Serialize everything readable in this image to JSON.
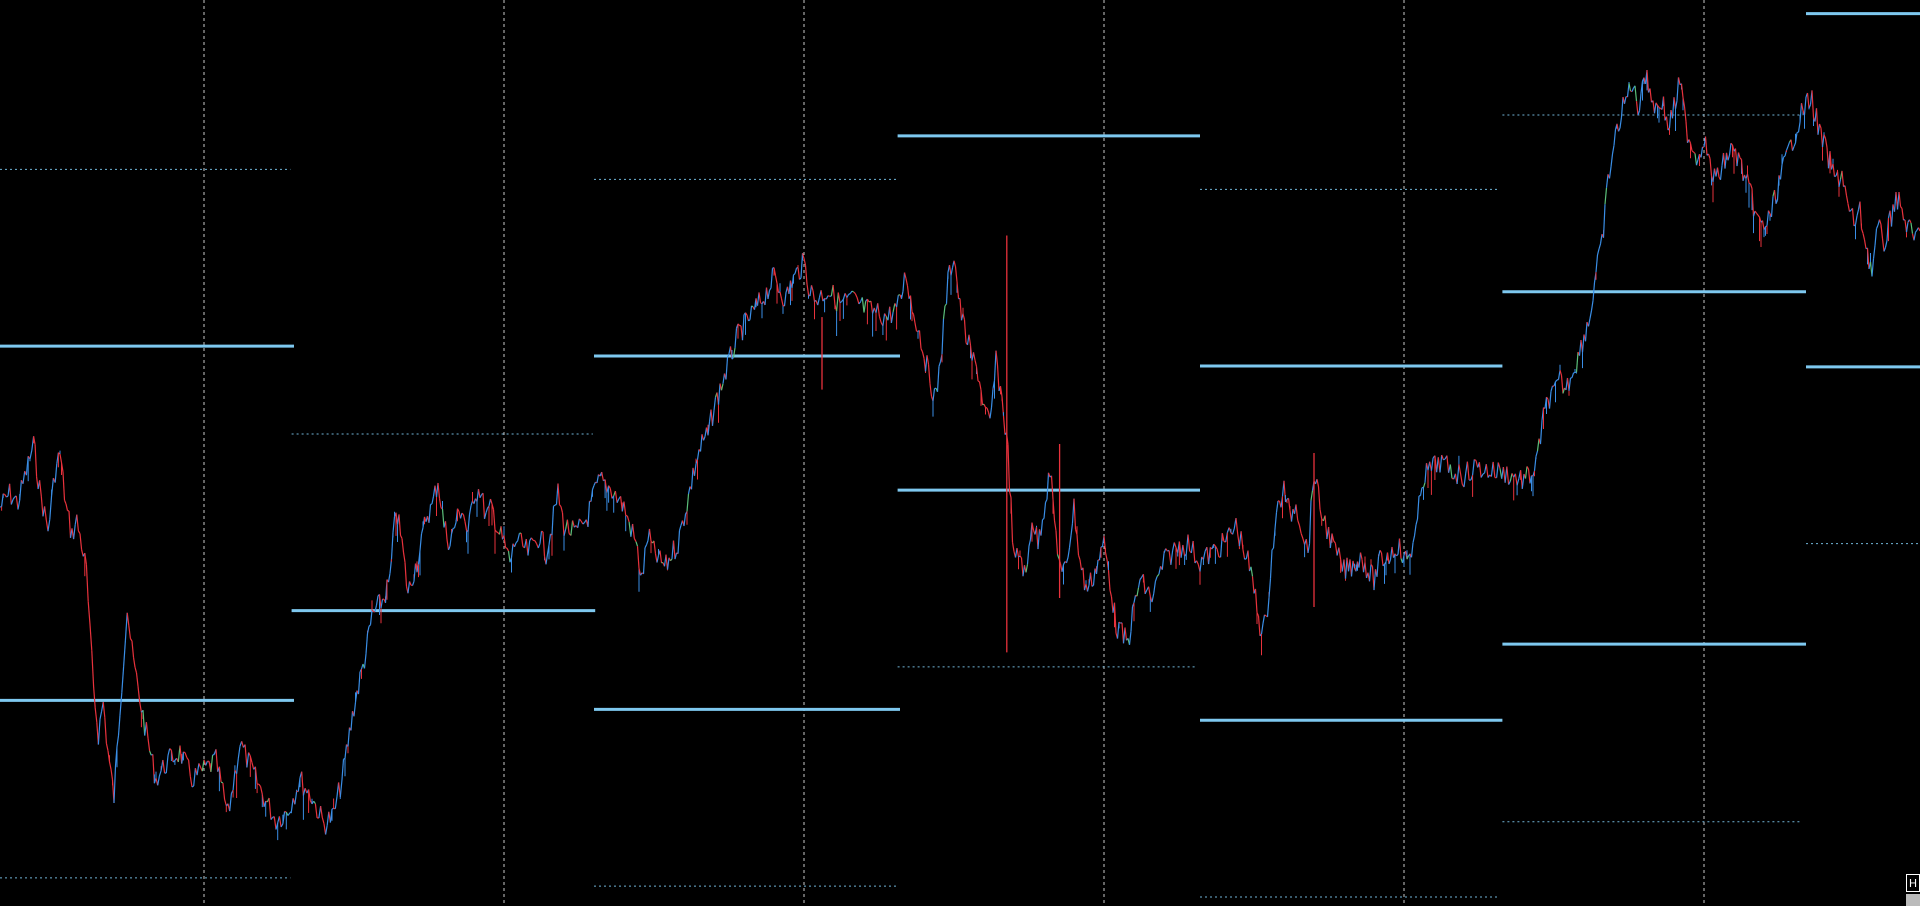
{
  "colors": {
    "background": "#000000",
    "vgrid": "#c8c8c8",
    "level": "#7ec8ef",
    "level_dashed": "#7ec8ef",
    "bull": "#3a8ee6",
    "bear": "#e8323c",
    "neutral": "#5bbf7a"
  },
  "corner_label": "H",
  "chart_data": {
    "type": "line",
    "title": "",
    "xlabel": "",
    "ylabel": "",
    "ylim": [
      0,
      1000
    ],
    "xlim": [
      0,
      1600
    ],
    "grid": "vertical-dashed",
    "vertical_gridlines_x": [
      170,
      420,
      670,
      920,
      1170,
      1420
    ],
    "price_path": [
      [
        0,
        560
      ],
      [
        8,
        545
      ],
      [
        15,
        555
      ],
      [
        22,
        520
      ],
      [
        28,
        490
      ],
      [
        33,
        540
      ],
      [
        40,
        585
      ],
      [
        46,
        520
      ],
      [
        50,
        500
      ],
      [
        55,
        560
      ],
      [
        60,
        590
      ],
      [
        64,
        575
      ],
      [
        68,
        600
      ],
      [
        72,
        630
      ],
      [
        75,
        700
      ],
      [
        78,
        760
      ],
      [
        82,
        810
      ],
      [
        86,
        775
      ],
      [
        90,
        830
      ],
      [
        95,
        880
      ],
      [
        100,
        780
      ],
      [
        106,
        670
      ],
      [
        110,
        720
      ],
      [
        115,
        760
      ],
      [
        122,
        810
      ],
      [
        130,
        860
      ],
      [
        140,
        840
      ],
      [
        150,
        830
      ],
      [
        160,
        860
      ],
      [
        170,
        850
      ],
      [
        180,
        840
      ],
      [
        190,
        900
      ],
      [
        200,
        820
      ],
      [
        210,
        850
      ],
      [
        220,
        880
      ],
      [
        230,
        905
      ],
      [
        240,
        895
      ],
      [
        250,
        860
      ],
      [
        260,
        880
      ],
      [
        270,
        910
      ],
      [
        278,
        900
      ],
      [
        285,
        860
      ],
      [
        290,
        820
      ],
      [
        295,
        780
      ],
      [
        300,
        750
      ],
      [
        305,
        720
      ],
      [
        310,
        680
      ],
      [
        315,
        670
      ],
      [
        320,
        660
      ],
      [
        325,
        640
      ],
      [
        330,
        560
      ],
      [
        335,
        600
      ],
      [
        340,
        655
      ],
      [
        345,
        630
      ],
      [
        350,
        610
      ],
      [
        355,
        570
      ],
      [
        360,
        560
      ],
      [
        365,
        530
      ],
      [
        370,
        580
      ],
      [
        375,
        600
      ],
      [
        380,
        575
      ],
      [
        385,
        560
      ],
      [
        390,
        590
      ],
      [
        395,
        545
      ],
      [
        400,
        540
      ],
      [
        405,
        570
      ],
      [
        410,
        560
      ],
      [
        415,
        585
      ],
      [
        420,
        600
      ],
      [
        425,
        620
      ],
      [
        430,
        595
      ],
      [
        440,
        610
      ],
      [
        450,
        590
      ],
      [
        455,
        610
      ],
      [
        460,
        580
      ],
      [
        465,
        545
      ],
      [
        470,
        580
      ],
      [
        480,
        590
      ],
      [
        490,
        570
      ],
      [
        495,
        545
      ],
      [
        500,
        530
      ],
      [
        510,
        540
      ],
      [
        520,
        560
      ],
      [
        530,
        600
      ],
      [
        535,
        640
      ],
      [
        540,
        590
      ],
      [
        545,
        610
      ],
      [
        550,
        620
      ],
      [
        555,
        625
      ],
      [
        560,
        610
      ],
      [
        565,
        600
      ],
      [
        570,
        570
      ],
      [
        575,
        540
      ],
      [
        580,
        510
      ],
      [
        585,
        490
      ],
      [
        590,
        480
      ],
      [
        595,
        450
      ],
      [
        600,
        430
      ],
      [
        605,
        410
      ],
      [
        610,
        390
      ],
      [
        615,
        370
      ],
      [
        620,
        360
      ],
      [
        625,
        350
      ],
      [
        630,
        340
      ],
      [
        635,
        330
      ],
      [
        640,
        320
      ],
      [
        645,
        305
      ],
      [
        650,
        320
      ],
      [
        655,
        330
      ],
      [
        660,
        310
      ],
      [
        665,
        300
      ],
      [
        670,
        290
      ],
      [
        675,
        320
      ],
      [
        680,
        330
      ],
      [
        690,
        320
      ],
      [
        700,
        335
      ],
      [
        710,
        330
      ],
      [
        720,
        340
      ],
      [
        730,
        345
      ],
      [
        740,
        350
      ],
      [
        750,
        335
      ],
      [
        755,
        300
      ],
      [
        760,
        340
      ],
      [
        765,
        360
      ],
      [
        770,
        390
      ],
      [
        775,
        420
      ],
      [
        780,
        440
      ],
      [
        785,
        380
      ],
      [
        790,
        310
      ],
      [
        795,
        280
      ],
      [
        800,
        340
      ],
      [
        805,
        370
      ],
      [
        810,
        395
      ],
      [
        815,
        410
      ],
      [
        820,
        450
      ],
      [
        825,
        470
      ],
      [
        830,
        400
      ],
      [
        835,
        440
      ],
      [
        840,
        500
      ],
      [
        845,
        620
      ],
      [
        850,
        610
      ],
      [
        855,
        640
      ],
      [
        860,
        570
      ],
      [
        865,
        600
      ],
      [
        870,
        560
      ],
      [
        875,
        520
      ],
      [
        880,
        590
      ],
      [
        885,
        640
      ],
      [
        890,
        610
      ],
      [
        895,
        560
      ],
      [
        900,
        620
      ],
      [
        905,
        650
      ],
      [
        910,
        640
      ],
      [
        915,
        620
      ],
      [
        920,
        600
      ],
      [
        925,
        640
      ],
      [
        930,
        690
      ],
      [
        935,
        700
      ],
      [
        940,
        710
      ],
      [
        945,
        670
      ],
      [
        950,
        640
      ],
      [
        960,
        660
      ],
      [
        970,
        620
      ],
      [
        980,
        605
      ],
      [
        990,
        600
      ],
      [
        1000,
        620
      ],
      [
        1010,
        610
      ],
      [
        1020,
        600
      ],
      [
        1030,
        580
      ],
      [
        1040,
        620
      ],
      [
        1045,
        650
      ],
      [
        1050,
        690
      ],
      [
        1055,
        690
      ],
      [
        1060,
        610
      ],
      [
        1065,
        560
      ],
      [
        1070,
        540
      ],
      [
        1075,
        570
      ],
      [
        1080,
        555
      ],
      [
        1090,
        610
      ],
      [
        1095,
        520
      ],
      [
        1100,
        560
      ],
      [
        1110,
        600
      ],
      [
        1120,
        630
      ],
      [
        1125,
        625
      ],
      [
        1130,
        620
      ],
      [
        1135,
        615
      ],
      [
        1140,
        630
      ],
      [
        1145,
        640
      ],
      [
        1150,
        620
      ],
      [
        1155,
        615
      ],
      [
        1160,
        610
      ],
      [
        1165,
        600
      ],
      [
        1170,
        620
      ],
      [
        1175,
        610
      ],
      [
        1180,
        590
      ],
      [
        1185,
        530
      ],
      [
        1190,
        520
      ],
      [
        1200,
        510
      ],
      [
        1210,
        520
      ],
      [
        1220,
        525
      ],
      [
        1230,
        515
      ],
      [
        1240,
        520
      ],
      [
        1250,
        520
      ],
      [
        1260,
        525
      ],
      [
        1270,
        530
      ],
      [
        1275,
        525
      ],
      [
        1280,
        515
      ],
      [
        1285,
        470
      ],
      [
        1290,
        440
      ],
      [
        1295,
        435
      ],
      [
        1300,
        420
      ],
      [
        1305,
        430
      ],
      [
        1310,
        410
      ],
      [
        1315,
        395
      ],
      [
        1320,
        370
      ],
      [
        1325,
        350
      ],
      [
        1330,
        300
      ],
      [
        1335,
        270
      ],
      [
        1340,
        200
      ],
      [
        1345,
        160
      ],
      [
        1350,
        130
      ],
      [
        1355,
        110
      ],
      [
        1360,
        90
      ],
      [
        1365,
        120
      ],
      [
        1370,
        80
      ],
      [
        1375,
        100
      ],
      [
        1380,
        120
      ],
      [
        1385,
        110
      ],
      [
        1390,
        140
      ],
      [
        1395,
        120
      ],
      [
        1400,
        90
      ],
      [
        1405,
        140
      ],
      [
        1410,
        160
      ],
      [
        1415,
        175
      ],
      [
        1420,
        150
      ],
      [
        1425,
        185
      ],
      [
        1430,
        200
      ],
      [
        1435,
        185
      ],
      [
        1440,
        170
      ],
      [
        1445,
        165
      ],
      [
        1450,
        180
      ],
      [
        1455,
        200
      ],
      [
        1460,
        220
      ],
      [
        1465,
        245
      ],
      [
        1470,
        250
      ],
      [
        1475,
        240
      ],
      [
        1480,
        215
      ],
      [
        1485,
        190
      ],
      [
        1490,
        170
      ],
      [
        1495,
        150
      ],
      [
        1500,
        130
      ],
      [
        1505,
        115
      ],
      [
        1510,
        110
      ],
      [
        1515,
        140
      ],
      [
        1520,
        160
      ],
      [
        1525,
        180
      ],
      [
        1530,
        200
      ],
      [
        1535,
        190
      ],
      [
        1540,
        230
      ],
      [
        1545,
        245
      ],
      [
        1550,
        235
      ],
      [
        1555,
        270
      ],
      [
        1560,
        300
      ],
      [
        1565,
        250
      ],
      [
        1570,
        270
      ],
      [
        1575,
        245
      ],
      [
        1580,
        215
      ],
      [
        1585,
        235
      ],
      [
        1590,
        250
      ],
      [
        1595,
        265
      ],
      [
        1600,
        255
      ]
    ],
    "spikes": [
      {
        "x": 839,
        "y1": 260,
        "y2": 720
      },
      {
        "x": 685,
        "y1": 350,
        "y2": 430
      },
      {
        "x": 883,
        "y1": 490,
        "y2": 660
      },
      {
        "x": 1095,
        "y1": 500,
        "y2": 670
      }
    ],
    "levels": [
      {
        "x1": 0,
        "x2": 245,
        "y": 382,
        "style": "solid"
      },
      {
        "x1": 0,
        "x2": 245,
        "y": 773,
        "style": "solid"
      },
      {
        "x1": 0,
        "x2": 242,
        "y": 187,
        "style": "dashed"
      },
      {
        "x1": 0,
        "x2": 242,
        "y": 969,
        "style": "dashed"
      },
      {
        "x1": 243,
        "x2": 496,
        "y": 674,
        "style": "solid"
      },
      {
        "x1": 243,
        "x2": 494,
        "y": 479,
        "style": "dashed"
      },
      {
        "x1": 495,
        "x2": 750,
        "y": 393,
        "style": "solid"
      },
      {
        "x1": 495,
        "x2": 750,
        "y": 783,
        "style": "solid"
      },
      {
        "x1": 495,
        "x2": 747,
        "y": 198,
        "style": "dashed"
      },
      {
        "x1": 495,
        "x2": 747,
        "y": 978,
        "style": "dashed"
      },
      {
        "x1": 748,
        "x2": 1000,
        "y": 150,
        "style": "solid"
      },
      {
        "x1": 748,
        "x2": 1000,
        "y": 541,
        "style": "solid"
      },
      {
        "x1": 748,
        "x2": 997,
        "y": 736,
        "style": "dashed"
      },
      {
        "x1": 1000,
        "x2": 1252,
        "y": 404,
        "style": "solid"
      },
      {
        "x1": 1000,
        "x2": 1252,
        "y": 795,
        "style": "solid"
      },
      {
        "x1": 1000,
        "x2": 1250,
        "y": 209,
        "style": "dashed"
      },
      {
        "x1": 1000,
        "x2": 1250,
        "y": 990,
        "style": "dashed"
      },
      {
        "x1": 1252,
        "x2": 1505,
        "y": 322,
        "style": "solid"
      },
      {
        "x1": 1252,
        "x2": 1505,
        "y": 711,
        "style": "solid"
      },
      {
        "x1": 1252,
        "x2": 1502,
        "y": 127,
        "style": "dashed"
      },
      {
        "x1": 1252,
        "x2": 1502,
        "y": 907,
        "style": "dashed"
      },
      {
        "x1": 1505,
        "x2": 1600,
        "y": 15,
        "style": "solid"
      },
      {
        "x1": 1505,
        "x2": 1600,
        "y": 405,
        "style": "solid"
      },
      {
        "x1": 1505,
        "x2": 1600,
        "y": 600,
        "style": "dashed"
      }
    ]
  }
}
